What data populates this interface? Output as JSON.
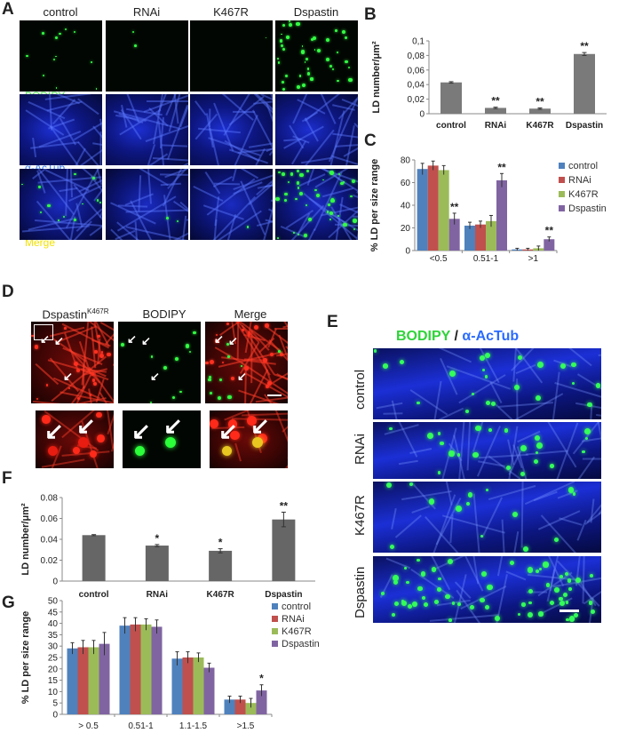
{
  "panels": {
    "A": {
      "letter": "A",
      "columns": [
        "control",
        "RNAi",
        "K467R",
        "Dspastin"
      ],
      "row_labels": [
        "BODIPY",
        "α-AcTub",
        "Merge"
      ]
    },
    "B": {
      "letter": "B",
      "chart_data": {
        "type": "bar",
        "ylabel": "LD number/μm²",
        "categories": [
          "control",
          "RNAi",
          "K467R",
          "Dspastin"
        ],
        "values": [
          0.043,
          0.008,
          0.007,
          0.082
        ],
        "errors": [
          0.001,
          0.001,
          0.001,
          0.002
        ],
        "significance": [
          "",
          "**",
          "**",
          "**"
        ],
        "ylim": [
          0,
          0.1
        ],
        "yticks": [
          "0",
          "0,02",
          "0,04",
          "0,06",
          "0,08",
          "0,1"
        ],
        "color": "#7a7a7a"
      }
    },
    "C": {
      "letter": "C",
      "chart_data": {
        "type": "bar",
        "ylabel": "% LD per size range",
        "categories": [
          "<0.5",
          "0.51-1",
          ">1"
        ],
        "series": [
          {
            "name": "control",
            "values": [
              72,
              22,
              1
            ],
            "errors": [
              5,
              3,
              1
            ],
            "color": "#4f81bd"
          },
          {
            "name": "RNAi",
            "values": [
              75,
              23,
              1
            ],
            "errors": [
              4,
              3,
              1
            ],
            "color": "#c0504d"
          },
          {
            "name": "K467R",
            "values": [
              71,
              26,
              2
            ],
            "errors": [
              4,
              5,
              2
            ],
            "color": "#9bbb59"
          },
          {
            "name": "Dspastin",
            "values": [
              28,
              62,
              10
            ],
            "errors": [
              5,
              6,
              2
            ],
            "color": "#8064a2"
          }
        ],
        "significance": [
          [
            "",
            "",
            "",
            "**"
          ],
          [
            "",
            "",
            "",
            "**"
          ],
          [
            "",
            "",
            "",
            "**"
          ]
        ],
        "ylim": [
          0,
          80
        ],
        "yticks": [
          "0",
          "20",
          "40",
          "60",
          "80"
        ],
        "legend": "right"
      }
    },
    "D": {
      "letter": "D",
      "columns": [
        "Dspastin",
        "BODIPY",
        "Merge"
      ],
      "superscript": "K467R"
    },
    "E": {
      "letter": "E",
      "title_green": "BODIPY",
      "title_sep": " / ",
      "title_blue": "α-AcTub",
      "rows": [
        "control",
        "RNAi",
        "K467R",
        "Dspastin"
      ]
    },
    "F": {
      "letter": "F",
      "chart_data": {
        "type": "bar",
        "ylabel": "LD number/μm²",
        "categories": [
          "control",
          "RNAi",
          "K467R",
          "Dspastin"
        ],
        "values": [
          0.044,
          0.034,
          0.029,
          0.059
        ],
        "errors": [
          0.0005,
          0.001,
          0.002,
          0.007
        ],
        "significance": [
          "",
          "*",
          "*",
          "**"
        ],
        "ylim": [
          0,
          0.08
        ],
        "yticks": [
          "0",
          "0.02",
          "0.04",
          "0.06",
          "0.08"
        ],
        "color": "#666666"
      }
    },
    "G": {
      "letter": "G",
      "chart_data": {
        "type": "bar",
        "ylabel": "% LD per size range",
        "categories": [
          "> 0.5",
          "0.51-1",
          "1.1-1.5",
          ">1.5"
        ],
        "series": [
          {
            "name": "control",
            "values": [
              29,
              39,
              24.5,
              6.5
            ],
            "errors": [
              2.5,
              3.5,
              3,
              1.5
            ],
            "color": "#4f81bd"
          },
          {
            "name": "RNAi",
            "values": [
              29.5,
              39.5,
              25,
              6.5
            ],
            "errors": [
              3,
              3,
              2.5,
              1.5
            ],
            "color": "#c0504d"
          },
          {
            "name": "K467R",
            "values": [
              29.5,
              39.5,
              25,
              5
            ],
            "errors": [
              3,
              2.5,
              2,
              2
            ],
            "color": "#9bbb59"
          },
          {
            "name": "Dspastin",
            "values": [
              31,
              38.5,
              20.5,
              10.5
            ],
            "errors": [
              5,
              3,
              2,
              2.5
            ],
            "color": "#8064a2"
          }
        ],
        "significance": [
          [
            "",
            "",
            "",
            ""
          ],
          [
            "",
            "",
            "",
            ""
          ],
          [
            "",
            "",
            "",
            ""
          ],
          [
            "",
            "",
            "",
            "*"
          ]
        ],
        "ylim": [
          0,
          50
        ],
        "yticks": [
          "0",
          "5",
          "10",
          "15",
          "20",
          "25",
          "30",
          "35",
          "40",
          "45",
          "50"
        ],
        "legend": "top-right"
      }
    }
  }
}
